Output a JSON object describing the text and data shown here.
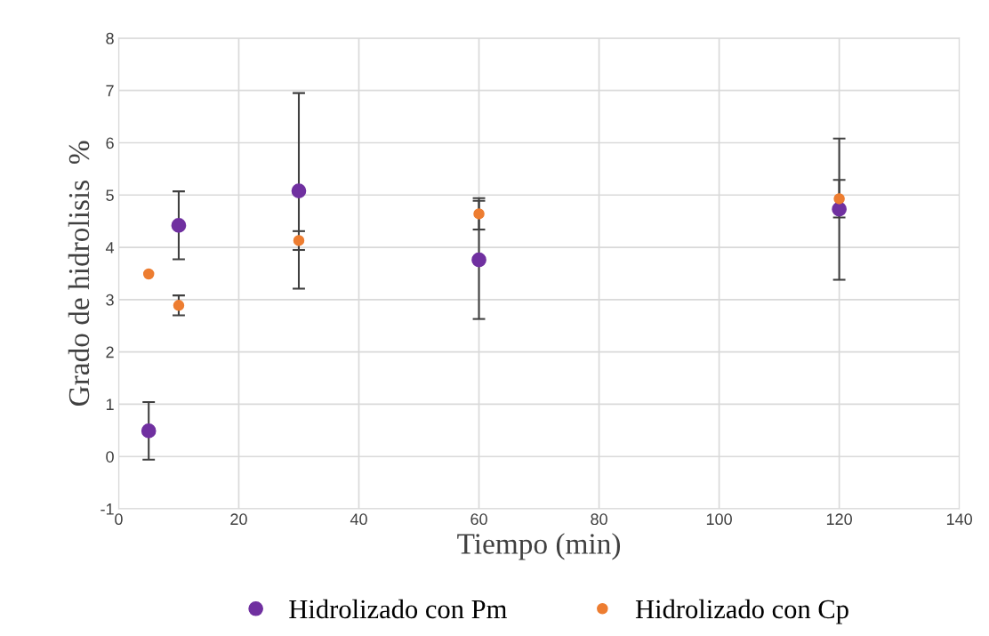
{
  "chart_data": {
    "type": "scatter",
    "xlabel": "Tiempo (min)",
    "ylabel": "Grado de hidrolisis  %",
    "x": [
      5,
      10,
      30,
      60,
      120
    ],
    "series": [
      {
        "name": "Hidrolizado con Pm",
        "color": "#7030a0",
        "values": [
          0.49,
          4.42,
          5.08,
          3.76,
          4.73
        ],
        "errors": [
          0.55,
          0.65,
          1.87,
          1.13,
          1.35
        ]
      },
      {
        "name": "Hidrolizado con Cp",
        "color": "#ed7d31",
        "values": [
          3.49,
          2.89,
          4.13,
          4.64,
          4.93
        ],
        "errors": [
          null,
          0.19,
          0.18,
          0.3,
          0.36
        ]
      }
    ],
    "xlim": [
      0,
      140
    ],
    "xticks": [
      0,
      20,
      40,
      60,
      80,
      100,
      120,
      140
    ],
    "ylim": [
      -1,
      8
    ],
    "yticks": [
      -1,
      0,
      1,
      2,
      3,
      4,
      5,
      6,
      7,
      8
    ],
    "grid": true,
    "legend": "bottom",
    "marker": "circle"
  }
}
